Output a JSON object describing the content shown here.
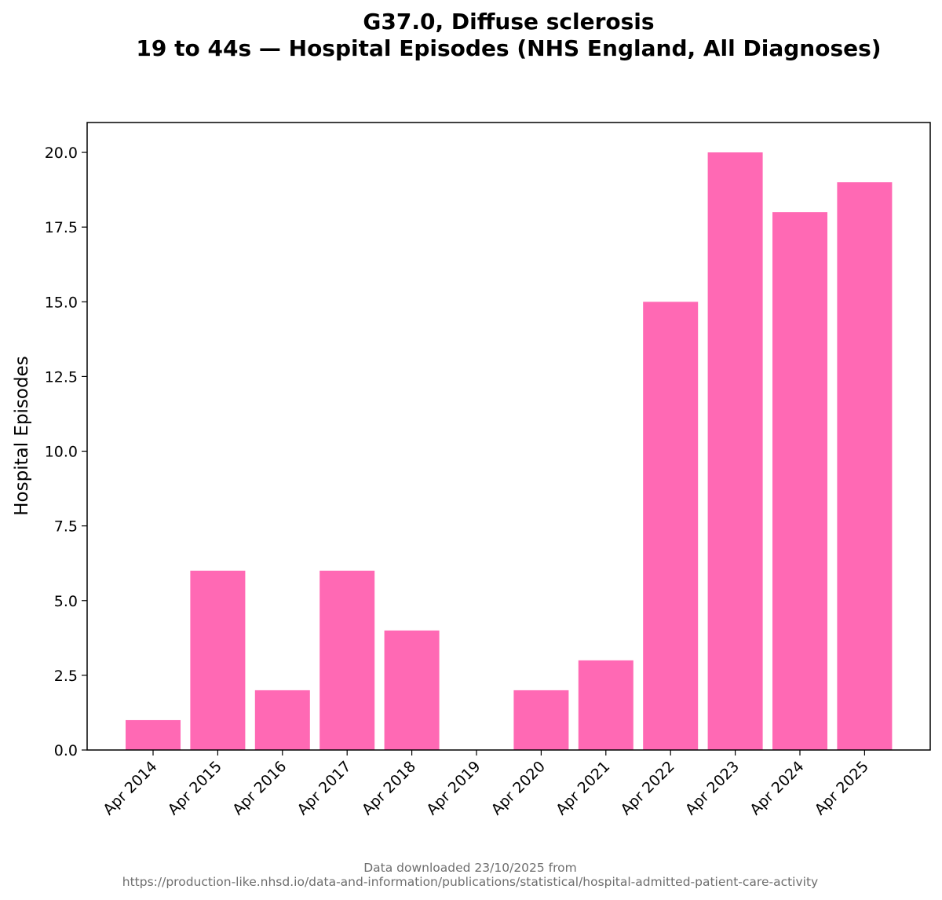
{
  "chart_data": {
    "type": "bar",
    "title_line1": "G37.0, Diffuse sclerosis",
    "title_line2": "19 to 44s — Hospital Episodes (NHS England, All Diagnoses)",
    "xlabel": "",
    "ylabel": "Hospital Episodes",
    "categories": [
      "Apr 2014",
      "Apr 2015",
      "Apr 2016",
      "Apr 2017",
      "Apr 2018",
      "Apr 2019",
      "Apr 2020",
      "Apr 2021",
      "Apr 2022",
      "Apr 2023",
      "Apr 2024",
      "Apr 2025"
    ],
    "values": [
      1,
      6,
      2,
      6,
      4,
      0,
      2,
      3,
      15,
      20,
      18,
      19
    ],
    "ylim": [
      0,
      21
    ],
    "yticks": [
      "0.0",
      "2.5",
      "5.0",
      "7.5",
      "10.0",
      "12.5",
      "15.0",
      "17.5",
      "20.0"
    ],
    "bar_color": "#ff69b4",
    "grid": false,
    "legend": "none"
  },
  "footnote": {
    "line1": "Data downloaded 23/10/2025 from",
    "line2": "https://production-like.nhsd.io/data-and-information/publications/statistical/hospital-admitted-patient-care-activity"
  }
}
